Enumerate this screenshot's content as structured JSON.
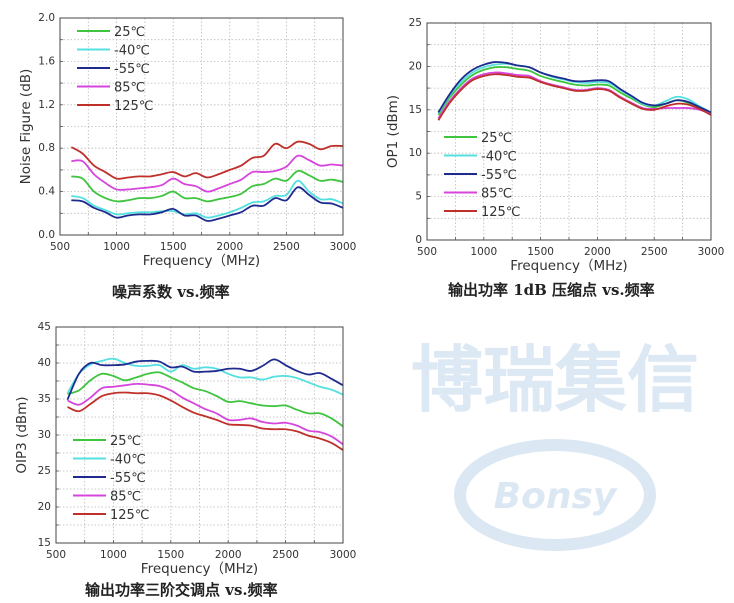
{
  "colors": {
    "25C": "#3ec43e",
    "-40C": "#55e0e0",
    "-55C": "#1e2a8e",
    "85C": "#d645dc",
    "125C": "#c0302a",
    "grid": "#bbbbbb",
    "watermark": "#dce8f3"
  },
  "watermark": {
    "logo_text": "Bonsy",
    "brand_text": "博瑞集信"
  },
  "chart_data": [
    {
      "type": "line",
      "caption": "噪声系数  vs.频率",
      "xlabel": "Frequency（MHz)",
      "ylabel": "Noise Figure (dB)",
      "xlim": [
        500,
        3000
      ],
      "ylim": [
        0,
        2.0
      ],
      "xticks": [
        "500",
        "1000",
        "1500",
        "2000",
        "2500",
        "3000"
      ],
      "yticks": [
        "0.0",
        "0.4",
        "0.8",
        "1.2",
        "1.6",
        "2.0"
      ],
      "grid": true,
      "legend": "top-left",
      "x": [
        600,
        700,
        800,
        900,
        1000,
        1100,
        1200,
        1300,
        1400,
        1500,
        1600,
        1700,
        1800,
        1900,
        2000,
        2100,
        2200,
        2300,
        2400,
        2500,
        2600,
        2700,
        2800,
        2900,
        3000
      ],
      "series": [
        {
          "name": "25℃",
          "color_key": "25C",
          "values": [
            0.54,
            0.52,
            0.4,
            0.34,
            0.31,
            0.32,
            0.34,
            0.34,
            0.36,
            0.4,
            0.34,
            0.34,
            0.31,
            0.33,
            0.35,
            0.38,
            0.45,
            0.47,
            0.52,
            0.5,
            0.59,
            0.55,
            0.5,
            0.51,
            0.49
          ]
        },
        {
          "name": "-40℃",
          "color_key": "-40C",
          "values": [
            0.36,
            0.34,
            0.27,
            0.23,
            0.19,
            0.2,
            0.21,
            0.21,
            0.22,
            0.22,
            0.19,
            0.2,
            0.16,
            0.18,
            0.21,
            0.25,
            0.3,
            0.31,
            0.36,
            0.37,
            0.5,
            0.4,
            0.33,
            0.33,
            0.29
          ]
        },
        {
          "name": "-55℃",
          "color_key": "-55C",
          "values": [
            0.32,
            0.31,
            0.25,
            0.21,
            0.16,
            0.18,
            0.19,
            0.19,
            0.21,
            0.24,
            0.18,
            0.18,
            0.13,
            0.15,
            0.18,
            0.21,
            0.27,
            0.27,
            0.34,
            0.32,
            0.44,
            0.37,
            0.3,
            0.29,
            0.25
          ]
        },
        {
          "name": "85℃",
          "color_key": "85C",
          "values": [
            0.68,
            0.68,
            0.56,
            0.48,
            0.42,
            0.42,
            0.43,
            0.44,
            0.46,
            0.52,
            0.47,
            0.45,
            0.4,
            0.43,
            0.47,
            0.51,
            0.58,
            0.58,
            0.59,
            0.63,
            0.73,
            0.69,
            0.64,
            0.65,
            0.64
          ]
        },
        {
          "name": "125℃",
          "color_key": "125C",
          "values": [
            0.81,
            0.75,
            0.64,
            0.58,
            0.52,
            0.53,
            0.54,
            0.54,
            0.56,
            0.58,
            0.54,
            0.57,
            0.53,
            0.56,
            0.6,
            0.64,
            0.71,
            0.73,
            0.84,
            0.8,
            0.86,
            0.84,
            0.79,
            0.82,
            0.82
          ]
        }
      ]
    },
    {
      "type": "line",
      "caption": "输出功率 1dB 压缩点  vs.频率",
      "xlabel": "Frequency（MHz)",
      "ylabel": "OP1 (dBm)",
      "xlim": [
        500,
        3000
      ],
      "ylim": [
        0,
        25
      ],
      "xticks": [
        "500",
        "1000",
        "1500",
        "2000",
        "2500",
        "3000"
      ],
      "yticks": [
        "0",
        "5",
        "10",
        "15",
        "20",
        "25"
      ],
      "grid": true,
      "legend": "bottom-left",
      "x": [
        600,
        700,
        800,
        900,
        1000,
        1100,
        1200,
        1300,
        1400,
        1500,
        1600,
        1700,
        1800,
        1900,
        2000,
        2100,
        2200,
        2300,
        2400,
        2500,
        2600,
        2700,
        2800,
        2900,
        3000
      ],
      "series": [
        {
          "name": "25℃",
          "color_key": "25C",
          "values": [
            14.4,
            16.4,
            17.9,
            19.0,
            19.6,
            19.9,
            19.9,
            19.7,
            19.5,
            18.9,
            18.5,
            18.2,
            17.9,
            17.8,
            17.9,
            17.8,
            17.0,
            16.3,
            15.6,
            15.3,
            15.7,
            16.1,
            15.8,
            15.2,
            14.6
          ]
        },
        {
          "name": "-40℃",
          "color_key": "-40C",
          "values": [
            14.6,
            16.7,
            18.2,
            19.3,
            19.9,
            20.2,
            20.3,
            20.1,
            19.9,
            19.3,
            18.8,
            18.5,
            18.2,
            18.1,
            18.2,
            18.1,
            17.3,
            16.5,
            15.7,
            15.5,
            16.0,
            16.5,
            16.2,
            15.4,
            14.7
          ]
        },
        {
          "name": "-55℃",
          "color_key": "-55C",
          "values": [
            14.7,
            16.8,
            18.5,
            19.6,
            20.2,
            20.5,
            20.4,
            20.1,
            19.9,
            19.3,
            18.9,
            18.6,
            18.3,
            18.3,
            18.4,
            18.3,
            17.4,
            16.6,
            15.8,
            15.5,
            15.7,
            16.1,
            15.9,
            15.3,
            14.7
          ]
        },
        {
          "name": "85℃",
          "color_key": "85C",
          "values": [
            14.0,
            16.0,
            17.5,
            18.6,
            19.1,
            19.3,
            19.2,
            19.0,
            18.9,
            18.3,
            17.9,
            17.6,
            17.3,
            17.3,
            17.5,
            17.3,
            16.5,
            15.8,
            15.2,
            15.1,
            15.2,
            15.2,
            15.2,
            15.0,
            14.5
          ]
        },
        {
          "name": "125℃",
          "color_key": "125C",
          "values": [
            13.8,
            15.8,
            17.3,
            18.4,
            18.9,
            19.1,
            19.0,
            18.8,
            18.7,
            18.2,
            17.8,
            17.5,
            17.2,
            17.2,
            17.4,
            17.2,
            16.4,
            15.7,
            15.1,
            15.0,
            15.4,
            15.7,
            15.6,
            15.1,
            14.4
          ]
        }
      ]
    },
    {
      "type": "line",
      "caption": "输出功率三阶交调点 vs.频率",
      "xlabel": "Frequency（MHz)",
      "ylabel": "OIP3 (dBm)",
      "xlim": [
        500,
        3000
      ],
      "ylim": [
        15,
        45
      ],
      "xticks": [
        "500",
        "1000",
        "1500",
        "2000",
        "2500",
        "3000"
      ],
      "yticks": [
        "15",
        "20",
        "25",
        "30",
        "35",
        "40",
        "45"
      ],
      "grid": true,
      "legend": "bottom-left",
      "x": [
        600,
        700,
        800,
        900,
        1000,
        1100,
        1200,
        1300,
        1400,
        1500,
        1600,
        1700,
        1800,
        1900,
        2000,
        2100,
        2200,
        2300,
        2400,
        2500,
        2600,
        2700,
        2800,
        2900,
        3000
      ],
      "series": [
        {
          "name": "25℃",
          "color_key": "25C",
          "values": [
            35.7,
            36.2,
            37.6,
            38.5,
            38.2,
            37.6,
            38.0,
            38.5,
            38.7,
            38.0,
            37.3,
            36.5,
            36.1,
            35.4,
            34.6,
            34.7,
            34.4,
            34.1,
            34.0,
            34.1,
            33.5,
            33.0,
            33.0,
            32.3,
            31.2
          ]
        },
        {
          "name": "-40℃",
          "color_key": "-40C",
          "values": [
            35.8,
            38.5,
            39.8,
            40.3,
            40.6,
            40.0,
            39.6,
            39.6,
            39.7,
            38.8,
            39.7,
            39.2,
            39.4,
            39.2,
            38.5,
            38.0,
            38.0,
            37.7,
            38.1,
            38.2,
            37.9,
            37.3,
            36.7,
            36.3,
            35.6
          ]
        },
        {
          "name": "-55℃",
          "color_key": "-55C",
          "values": [
            34.9,
            38.5,
            40.0,
            39.7,
            39.7,
            39.8,
            40.2,
            40.3,
            40.2,
            39.4,
            39.5,
            38.8,
            38.8,
            38.9,
            39.2,
            39.2,
            38.9,
            39.6,
            40.5,
            39.7,
            38.9,
            38.4,
            38.6,
            37.8,
            36.9
          ]
        },
        {
          "name": "85℃",
          "color_key": "85C",
          "values": [
            34.8,
            34.2,
            35.2,
            36.5,
            36.7,
            36.9,
            37.1,
            37.0,
            36.8,
            36.2,
            35.2,
            34.4,
            33.6,
            33.0,
            32.1,
            32.1,
            32.3,
            31.8,
            31.6,
            31.7,
            31.3,
            30.6,
            30.4,
            29.8,
            28.7
          ]
        },
        {
          "name": "125℃",
          "color_key": "125C",
          "values": [
            33.9,
            33.3,
            34.3,
            35.4,
            35.8,
            35.9,
            35.8,
            35.8,
            35.5,
            34.8,
            33.9,
            33.1,
            32.6,
            32.1,
            31.5,
            31.4,
            31.3,
            30.9,
            30.8,
            30.8,
            30.5,
            29.9,
            29.5,
            28.9,
            27.9
          ]
        }
      ]
    }
  ]
}
